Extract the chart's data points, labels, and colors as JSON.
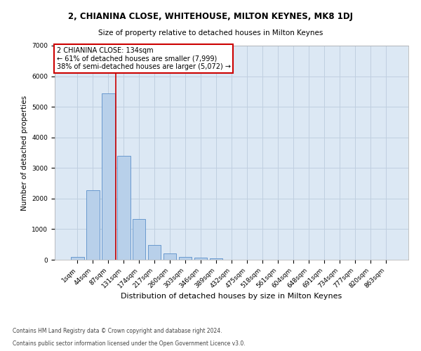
{
  "title": "2, CHIANINA CLOSE, WHITEHOUSE, MILTON KEYNES, MK8 1DJ",
  "subtitle": "Size of property relative to detached houses in Milton Keynes",
  "xlabel": "Distribution of detached houses by size in Milton Keynes",
  "ylabel": "Number of detached properties",
  "footer_line1": "Contains HM Land Registry data © Crown copyright and database right 2024.",
  "footer_line2": "Contains public sector information licensed under the Open Government Licence v3.0.",
  "bar_labels": [
    "1sqm",
    "44sqm",
    "87sqm",
    "131sqm",
    "174sqm",
    "217sqm",
    "260sqm",
    "303sqm",
    "346sqm",
    "389sqm",
    "432sqm",
    "475sqm",
    "518sqm",
    "561sqm",
    "604sqm",
    "648sqm",
    "691sqm",
    "734sqm",
    "777sqm",
    "820sqm",
    "863sqm"
  ],
  "bar_values": [
    90,
    2280,
    5450,
    3400,
    1320,
    480,
    200,
    100,
    60,
    40,
    0,
    0,
    0,
    0,
    0,
    0,
    0,
    0,
    0,
    0,
    0
  ],
  "bar_color": "#b8d0ea",
  "bar_edge_color": "#5b8fc9",
  "grid_color": "#c0cfe0",
  "background_color": "#dce8f4",
  "vline_color": "#cc0000",
  "vline_pos": 2.5,
  "annotation_text": "2 CHIANINA CLOSE: 134sqm\n← 61% of detached houses are smaller (7,999)\n38% of semi-detached houses are larger (5,072) →",
  "annotation_box_facecolor": "#ffffff",
  "annotation_box_edgecolor": "#cc0000",
  "ylim": [
    0,
    7000
  ],
  "yticks": [
    0,
    1000,
    2000,
    3000,
    4000,
    5000,
    6000,
    7000
  ],
  "title_fontsize": 8.5,
  "subtitle_fontsize": 7.5,
  "xlabel_fontsize": 8,
  "ylabel_fontsize": 7.5,
  "tick_fontsize": 6.5,
  "annotation_fontsize": 7,
  "footer_fontsize": 5.5
}
